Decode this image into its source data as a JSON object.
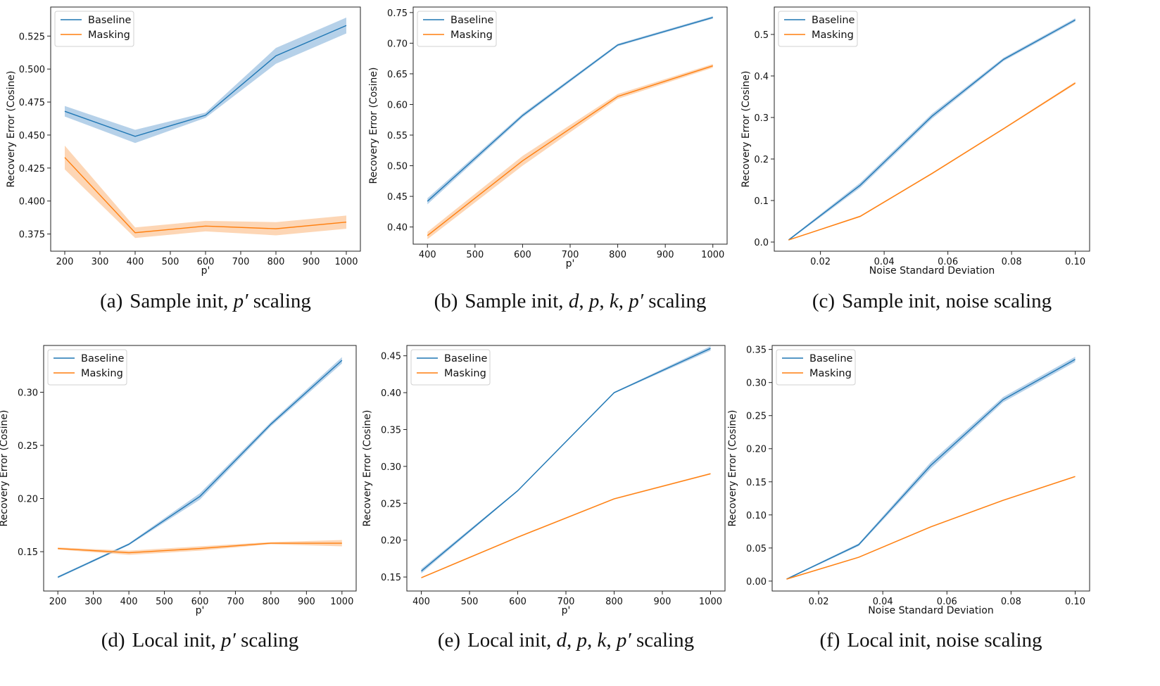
{
  "colors": {
    "baseline": "#1f77b4",
    "masking": "#ff7f0e",
    "baseline_band": "#9ec2e2",
    "masking_band": "#fcc89c"
  },
  "chart_data": [
    {
      "type": "line",
      "grid": false,
      "legend": "top-left",
      "xlabel": "p'",
      "ylabel": "Recovery Error (Cosine)",
      "x": [
        200,
        400,
        600,
        800,
        1000
      ],
      "xticks": [
        200,
        300,
        400,
        500,
        600,
        700,
        800,
        900,
        1000
      ],
      "xtick_fmt": 0,
      "yticks": [
        0.375,
        0.4,
        0.425,
        0.45,
        0.475,
        0.5,
        0.525
      ],
      "ytick_fmt": 3,
      "xlim": [
        160,
        1040
      ],
      "ylim": [
        0.362,
        0.547
      ],
      "series": [
        {
          "name": "Baseline",
          "values": [
            0.468,
            0.449,
            0.465,
            0.51,
            0.533
          ],
          "ci": [
            0.004,
            0.005,
            0.002,
            0.006,
            0.006
          ]
        },
        {
          "name": "Masking",
          "values": [
            0.433,
            0.376,
            0.381,
            0.379,
            0.384
          ],
          "ci": [
            0.009,
            0.004,
            0.004,
            0.005,
            0.005
          ]
        }
      ],
      "caption": [
        {
          "t": "(a)",
          "lab": true
        },
        {
          "t": "Sample init, "
        },
        {
          "t": "p′",
          "i": true
        },
        {
          "t": " scaling"
        }
      ]
    },
    {
      "type": "line",
      "grid": false,
      "legend": "top-left",
      "xlabel": "p'",
      "ylabel": "Recovery Error (Cosine)",
      "x": [
        400,
        600,
        800,
        1000
      ],
      "xticks": [
        400,
        500,
        600,
        700,
        800,
        900,
        1000
      ],
      "xtick_fmt": 0,
      "yticks": [
        0.4,
        0.45,
        0.5,
        0.55,
        0.6,
        0.65,
        0.7,
        0.75
      ],
      "ytick_fmt": 2,
      "xlim": [
        370,
        1030
      ],
      "ylim": [
        0.372,
        0.759
      ],
      "series": [
        {
          "name": "Baseline",
          "values": [
            0.442,
            0.582,
            0.697,
            0.742
          ],
          "ci": [
            0.005,
            0.003,
            0.002,
            0.002
          ]
        },
        {
          "name": "Masking",
          "values": [
            0.386,
            0.508,
            0.613,
            0.663
          ],
          "ci": [
            0.006,
            0.008,
            0.004,
            0.003
          ]
        }
      ],
      "caption": [
        {
          "t": "(b)",
          "lab": true
        },
        {
          "t": "Sample init, "
        },
        {
          "t": "d",
          "i": true
        },
        {
          "t": ", "
        },
        {
          "t": "p",
          "i": true
        },
        {
          "t": ", "
        },
        {
          "t": "k",
          "i": true
        },
        {
          "t": ", "
        },
        {
          "t": "p′",
          "i": true
        },
        {
          "t": " scaling"
        }
      ]
    },
    {
      "type": "line",
      "grid": false,
      "legend": "top-left",
      "xlabel": "Noise Standard Deviation",
      "ylabel": "Recovery Error (Cosine)",
      "x": [
        0.01,
        0.0325,
        0.055,
        0.0775,
        0.1
      ],
      "xticks": [
        0.02,
        0.04,
        0.06,
        0.08,
        0.1
      ],
      "xtick_fmt": 2,
      "yticks": [
        0.0,
        0.1,
        0.2,
        0.3,
        0.4,
        0.5
      ],
      "ytick_fmt": 1,
      "xlim": [
        0.0055,
        0.1045
      ],
      "ylim": [
        -0.022,
        0.566
      ],
      "series": [
        {
          "name": "Baseline",
          "values": [
            0.005,
            0.137,
            0.303,
            0.44,
            0.535
          ],
          "ci": [
            0.002,
            0.006,
            0.006,
            0.004,
            0.004
          ]
        },
        {
          "name": "Masking",
          "values": [
            0.005,
            0.062,
            0.165,
            0.273,
            0.383
          ],
          "ci": [
            0.001,
            0.002,
            0.002,
            0.002,
            0.003
          ]
        }
      ],
      "caption": [
        {
          "t": "(c)",
          "lab": true
        },
        {
          "t": "Sample init, noise scaling"
        }
      ]
    },
    {
      "type": "line",
      "grid": false,
      "legend": "top-left",
      "xlabel": "p'",
      "ylabel": "Recovery Error (Cosine)",
      "x": [
        200,
        400,
        600,
        800,
        1000
      ],
      "xticks": [
        200,
        300,
        400,
        500,
        600,
        700,
        800,
        900,
        1000
      ],
      "xtick_fmt": 0,
      "yticks": [
        0.15,
        0.2,
        0.25,
        0.3
      ],
      "ytick_fmt": 2,
      "xlim": [
        160,
        1040
      ],
      "ylim": [
        0.113,
        0.344
      ],
      "series": [
        {
          "name": "Baseline",
          "values": [
            0.126,
            0.157,
            0.202,
            0.27,
            0.33
          ],
          "ci": [
            0.001,
            0.001,
            0.003,
            0.002,
            0.003
          ]
        },
        {
          "name": "Masking",
          "values": [
            0.153,
            0.149,
            0.153,
            0.158,
            0.158
          ],
          "ci": [
            0.001,
            0.002,
            0.002,
            0.001,
            0.003
          ]
        }
      ],
      "caption": [
        {
          "t": "(d)",
          "lab": true
        },
        {
          "t": "Local init, "
        },
        {
          "t": "p′",
          "i": true
        },
        {
          "t": " scaling"
        }
      ]
    },
    {
      "type": "line",
      "grid": false,
      "legend": "top-left",
      "xlabel": "p'",
      "ylabel": "Recovery Error (Cosine)",
      "x": [
        400,
        600,
        800,
        1000
      ],
      "xticks": [
        400,
        500,
        600,
        700,
        800,
        900,
        1000
      ],
      "xtick_fmt": 0,
      "yticks": [
        0.15,
        0.2,
        0.25,
        0.3,
        0.35,
        0.4,
        0.45
      ],
      "ytick_fmt": 2,
      "xlim": [
        370,
        1030
      ],
      "ylim": [
        0.131,
        0.464
      ],
      "series": [
        {
          "name": "Baseline",
          "values": [
            0.158,
            0.267,
            0.4,
            0.46
          ],
          "ci": [
            0.003,
            0.001,
            0.001,
            0.003
          ]
        },
        {
          "name": "Masking",
          "values": [
            0.149,
            0.204,
            0.256,
            0.29
          ],
          "ci": [
            0.001,
            0.001,
            0.001,
            0.001
          ]
        }
      ],
      "caption": [
        {
          "t": "(e)",
          "lab": true
        },
        {
          "t": "Local init, "
        },
        {
          "t": "d",
          "i": true
        },
        {
          "t": ", "
        },
        {
          "t": "p",
          "i": true
        },
        {
          "t": ", "
        },
        {
          "t": "k",
          "i": true
        },
        {
          "t": ", "
        },
        {
          "t": "p′",
          "i": true
        },
        {
          "t": " scaling"
        }
      ]
    },
    {
      "type": "line",
      "grid": false,
      "legend": "top-left",
      "xlabel": "Noise Standard Deviation",
      "ylabel": "Recovery Error (Cosine)",
      "x": [
        0.01,
        0.0325,
        0.055,
        0.0775,
        0.1
      ],
      "xticks": [
        0.02,
        0.04,
        0.06,
        0.08,
        0.1
      ],
      "xtick_fmt": 2,
      "yticks": [
        0.0,
        0.05,
        0.1,
        0.15,
        0.2,
        0.25,
        0.3,
        0.35
      ],
      "ytick_fmt": 2,
      "xlim": [
        0.0055,
        0.1045
      ],
      "ylim": [
        -0.015,
        0.356
      ],
      "series": [
        {
          "name": "Baseline",
          "values": [
            0.003,
            0.055,
            0.175,
            0.274,
            0.335
          ],
          "ci": [
            0.001,
            0.002,
            0.005,
            0.004,
            0.004
          ]
        },
        {
          "name": "Masking",
          "values": [
            0.003,
            0.036,
            0.082,
            0.122,
            0.158
          ],
          "ci": [
            0.001,
            0.001,
            0.001,
            0.001,
            0.001
          ]
        }
      ],
      "caption": [
        {
          "t": "(f)",
          "lab": true
        },
        {
          "t": "Local init, noise scaling"
        }
      ]
    }
  ]
}
